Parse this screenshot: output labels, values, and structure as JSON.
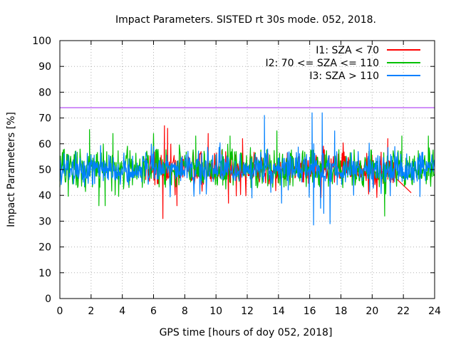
{
  "chart_data": {
    "type": "line",
    "title": "Impact Parameters. SISTED rt 30s mode. 052, 2018.",
    "xlabel": "GPS time [hours of doy 052, 2018]",
    "ylabel": "Impact Parameters [%]",
    "xlim": [
      0,
      24
    ],
    "ylim": [
      0,
      100
    ],
    "xticks": [
      0,
      2,
      4,
      6,
      8,
      10,
      12,
      14,
      16,
      18,
      20,
      22,
      24
    ],
    "yticks": [
      0,
      10,
      20,
      30,
      40,
      50,
      60,
      70,
      80,
      90,
      100
    ],
    "grid": true,
    "legend_position": "top-right",
    "reference_line": {
      "y": 74,
      "color": "#a020f0"
    },
    "series": [
      {
        "name": "I1: SZA < 70",
        "color": "#ff0000",
        "x_range": [
          5.5,
          21.5
        ],
        "mean": 50,
        "typical_range": [
          44,
          57
        ],
        "spikes": [
          {
            "x": 6.6,
            "y": 31
          },
          {
            "x": 6.7,
            "y": 67
          },
          {
            "x": 6.9,
            "y": 66
          },
          {
            "x": 7.5,
            "y": 36
          },
          {
            "x": 9.5,
            "y": 64
          },
          {
            "x": 10.8,
            "y": 37
          },
          {
            "x": 11.7,
            "y": 62
          },
          {
            "x": 21.0,
            "y": 62
          },
          {
            "x": 22.5,
            "y": 41
          }
        ]
      },
      {
        "name": "I2: 70 <= SZA <= 110",
        "color": "#00c000",
        "x_range": [
          0,
          24
        ],
        "mean": 50,
        "typical_range": [
          43,
          58
        ],
        "spikes": [
          {
            "x": 1.9,
            "y": 65.5
          },
          {
            "x": 2.5,
            "y": 36
          },
          {
            "x": 2.9,
            "y": 36
          },
          {
            "x": 3.4,
            "y": 64
          },
          {
            "x": 6.0,
            "y": 64
          },
          {
            "x": 8.7,
            "y": 63
          },
          {
            "x": 10.9,
            "y": 63
          },
          {
            "x": 13.9,
            "y": 65
          },
          {
            "x": 20.8,
            "y": 32
          },
          {
            "x": 21.9,
            "y": 63
          },
          {
            "x": 23.6,
            "y": 63
          }
        ]
      },
      {
        "name": "I3: SZA > 110",
        "color": "#0080ff",
        "x_range": [
          0,
          24
        ],
        "mean": 50,
        "typical_range": [
          44,
          57
        ],
        "spikes": [
          {
            "x": 12.3,
            "y": 39
          },
          {
            "x": 13.1,
            "y": 71
          },
          {
            "x": 14.2,
            "y": 37
          },
          {
            "x": 16.15,
            "y": 72
          },
          {
            "x": 16.25,
            "y": 28.5
          },
          {
            "x": 16.7,
            "y": 35
          },
          {
            "x": 16.8,
            "y": 72
          },
          {
            "x": 16.9,
            "y": 33
          },
          {
            "x": 17.3,
            "y": 29
          },
          {
            "x": 17.6,
            "y": 65
          }
        ]
      }
    ]
  }
}
